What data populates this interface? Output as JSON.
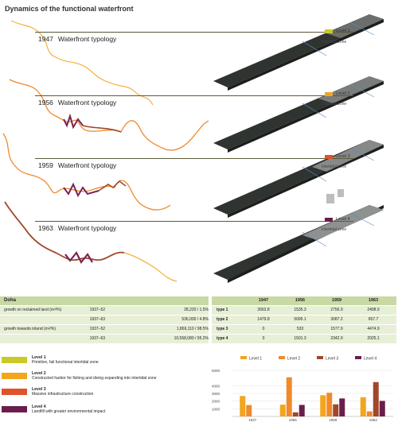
{
  "title": "Dynamics of the functional waterfront",
  "typologies": [
    {
      "year": "1947",
      "label": "Waterfront typology"
    },
    {
      "year": "1956",
      "label": "Waterfront typology"
    },
    {
      "year": "1959",
      "label": "Waterfront typology"
    },
    {
      "year": "1963",
      "label": "Waterfront typology"
    }
  ],
  "levels_inline": [
    {
      "label": "Level 1",
      "zone": "intertidal zone",
      "color": "#c9c927"
    },
    {
      "label": "Level 2",
      "zone": "intertidal zone",
      "color": "#f2a51d"
    },
    {
      "label": "Level 3",
      "zone": "intertidal zone",
      "color": "#e0522b"
    },
    {
      "label": "Level 4",
      "zone": "intertidal zone",
      "color": "#6a1e4c"
    }
  ],
  "colors": {
    "level1": "#c9c927",
    "level2": "#f2a51d",
    "level3": "#e0522b",
    "level4": "#6a1e4c",
    "orange": "#f08a2b",
    "brown": "#a0482c",
    "table_header": "#c8d9a4",
    "table_row": "#e7efd6"
  },
  "doha_table": {
    "header": "Doha",
    "rows": [
      {
        "label": "growth on reclaimed land (m²/%)",
        "period": "1937–52",
        "value": "28,220 / 1.5%"
      },
      {
        "label": "",
        "period": "1937–63",
        "value": "536,000 / 4.8%"
      },
      {
        "label": "growth towards inland (m²/%)",
        "period": "1937–52",
        "value": "1,869,110 / 98.5%"
      },
      {
        "label": "",
        "period": "1937–63",
        "value": "10,558,080 / 95.2%"
      }
    ]
  },
  "type_table": {
    "headers": [
      "",
      "1947",
      "1956",
      "1959",
      "1963"
    ],
    "rows": [
      {
        "type": "type 1",
        "values": [
          "2663.8",
          "1535.3",
          "2756.9",
          "2498.9"
        ]
      },
      {
        "type": "type 2",
        "values": [
          "1479.8",
          "5095.1",
          "3087.2",
          "657.7"
        ]
      },
      {
        "type": "type 3",
        "values": [
          "0",
          "533",
          "1577.9",
          "4474.9"
        ]
      },
      {
        "type": "type 4",
        "values": [
          "0",
          "1501.3",
          "2342.9",
          "2025.1"
        ]
      }
    ]
  },
  "legend": [
    {
      "title": "Level 1",
      "desc": "Primitive, fail functional intertidal zone",
      "color": "#c9c927"
    },
    {
      "title": "Level 2",
      "desc": "Constructed harbor for fishing and diving expanding into intertidal zone",
      "color": "#f2a51d"
    },
    {
      "title": "Level 3",
      "desc": "Massive infrastructure construction",
      "color": "#e0522b"
    },
    {
      "title": "Level 4",
      "desc": "Landfill with greater environmental impact",
      "color": "#6a1e4c"
    }
  ],
  "chart_data": {
    "type": "bar",
    "categories": [
      "1947",
      "1956",
      "1959",
      "1963"
    ],
    "series": [
      {
        "name": "Level 1",
        "color": "#f2a51d",
        "values": [
          2663.8,
          1535.3,
          2756.9,
          2498.9
        ]
      },
      {
        "name": "Level 2",
        "color": "#f08a2b",
        "values": [
          1479.8,
          5095.1,
          3087.2,
          657.7
        ]
      },
      {
        "name": "Level 3",
        "color": "#a0482c",
        "values": [
          0,
          533,
          1577.9,
          4474.9
        ]
      },
      {
        "name": "Level 4",
        "color": "#6a1e4c",
        "values": [
          0,
          1501.3,
          2342.9,
          2025.1
        ]
      }
    ],
    "yticks": [
      "6000",
      "4000",
      "3000",
      "2000",
      "1000"
    ],
    "ylim": [
      0,
      6000
    ],
    "legend_position": "top",
    "grid": true
  }
}
